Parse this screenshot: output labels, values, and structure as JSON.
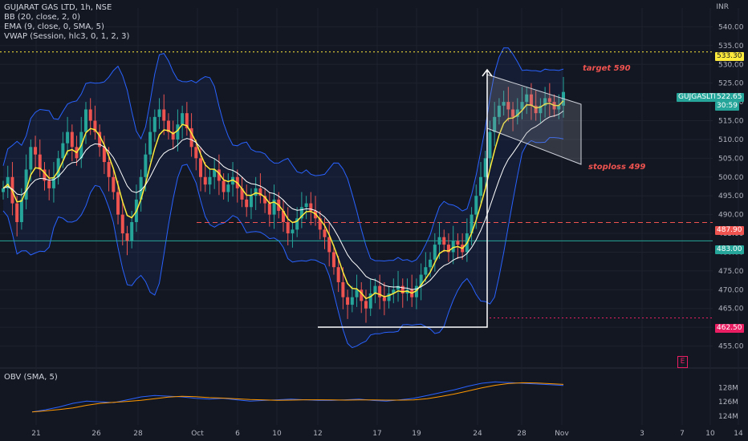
{
  "legend": {
    "symbol_line": "GUJARAT GAS LTD, 1h, NSE",
    "bb_line": "BB (20, close, 2, 0)",
    "ema_line": "EMA (9, close, 0, SMA, 5)",
    "vwap_line": "VWAP (Session, hlc3, 0, 1, 2, 3)",
    "obv_line": "OBV (SMA, 5)"
  },
  "currency": "INR",
  "annotations": {
    "target": "target 590",
    "stoploss": "stoploss 499",
    "e_badge": "E"
  },
  "price_tags": {
    "resistance_dotted": "533.30",
    "symbol": "GUJGASLTD",
    "last_price": "522.65",
    "countdown": "30:59",
    "red_dashed": "487.90",
    "teal_line": "483.00",
    "support_dotted": "462.50"
  },
  "colors": {
    "background": "#131722",
    "up": "#26a69a",
    "down": "#ef5350",
    "bb_band": "#2962ff",
    "ema": "#ffeb3b",
    "vwap": "#ffffff",
    "resistance": "#ffeb3b",
    "red_line": "#ef5350",
    "teal_line": "#26a69a",
    "support": "#e91e63"
  },
  "chart_data": {
    "type": "candlestick",
    "title": "GUJARAT GAS LTD, 1h, NSE",
    "ylabel": "INR",
    "price_ylim": [
      450,
      545
    ],
    "price_ticks": [
      455.0,
      460.0,
      465.0,
      470.0,
      475.0,
      480.0,
      485.0,
      490.0,
      495.0,
      500.0,
      505.0,
      510.0,
      515.0,
      520.0,
      525.0,
      530.0,
      535.0,
      540.0
    ],
    "x_ticks": [
      "21",
      "26",
      "28",
      "Oct",
      "6",
      "10",
      "12",
      "17",
      "19",
      "24",
      "28",
      "Nov",
      "3",
      "7",
      "10",
      "14"
    ],
    "close_series": [
      497,
      500,
      493,
      488,
      494,
      502,
      508,
      506,
      502,
      499,
      497,
      500,
      505,
      509,
      512,
      508,
      505,
      512,
      518,
      515,
      512,
      508,
      504,
      500,
      496,
      490,
      485,
      483,
      488,
      494,
      500,
      506,
      512,
      516,
      518,
      515,
      512,
      510,
      514,
      517,
      513,
      508,
      505,
      500,
      498,
      500,
      502,
      499,
      496,
      498,
      500,
      497,
      494,
      492,
      495,
      497,
      495,
      493,
      490,
      494,
      491,
      488,
      485,
      486,
      489,
      492,
      493,
      491,
      489,
      486,
      484,
      480,
      476,
      472,
      468,
      466,
      468,
      470,
      467,
      465,
      469,
      471,
      468,
      467,
      469,
      470,
      471,
      469,
      470,
      468,
      471,
      474,
      476,
      478,
      482,
      484,
      482,
      480,
      483,
      482,
      480,
      485,
      490,
      495,
      500,
      505,
      512,
      516,
      519,
      520,
      518,
      516,
      518,
      520,
      522,
      519,
      517,
      519,
      521,
      520,
      518,
      519,
      522.65
    ],
    "overlays": {
      "bollinger": "BB (20, close, 2, 0)",
      "ema": "EMA (9, close, 0, SMA, 5)",
      "vwap": "VWAP (Session, hlc3, 0, 1, 2, 3)"
    },
    "horizontal_levels": [
      {
        "price": 533.3,
        "style": "dotted",
        "color": "#ffeb3b"
      },
      {
        "price": 487.9,
        "style": "dashed",
        "color": "#ef5350"
      },
      {
        "price": 483.0,
        "style": "solid",
        "color": "#26a69a"
      },
      {
        "price": 462.5,
        "style": "dotted",
        "color": "#e91e63"
      }
    ],
    "obv": {
      "label": "OBV (SMA, 5)",
      "ticks": [
        "124M",
        "126M",
        "128M"
      ],
      "ylim": [
        123,
        129.5
      ],
      "values": [
        124.6,
        124.9,
        125.3,
        125.8,
        126.1,
        126.0,
        125.9,
        126.3,
        126.7,
        126.9,
        126.8,
        126.7,
        126.5,
        126.4,
        126.5,
        126.3,
        126.1,
        126.2,
        126.3,
        126.4,
        126.3,
        126.2,
        126.2,
        126.3,
        126.4,
        126.2,
        126.1,
        126.3,
        126.5,
        126.9,
        127.3,
        127.7,
        128.2,
        128.6,
        128.8,
        128.7,
        128.6,
        128.5,
        128.4,
        128.3
      ]
    }
  }
}
